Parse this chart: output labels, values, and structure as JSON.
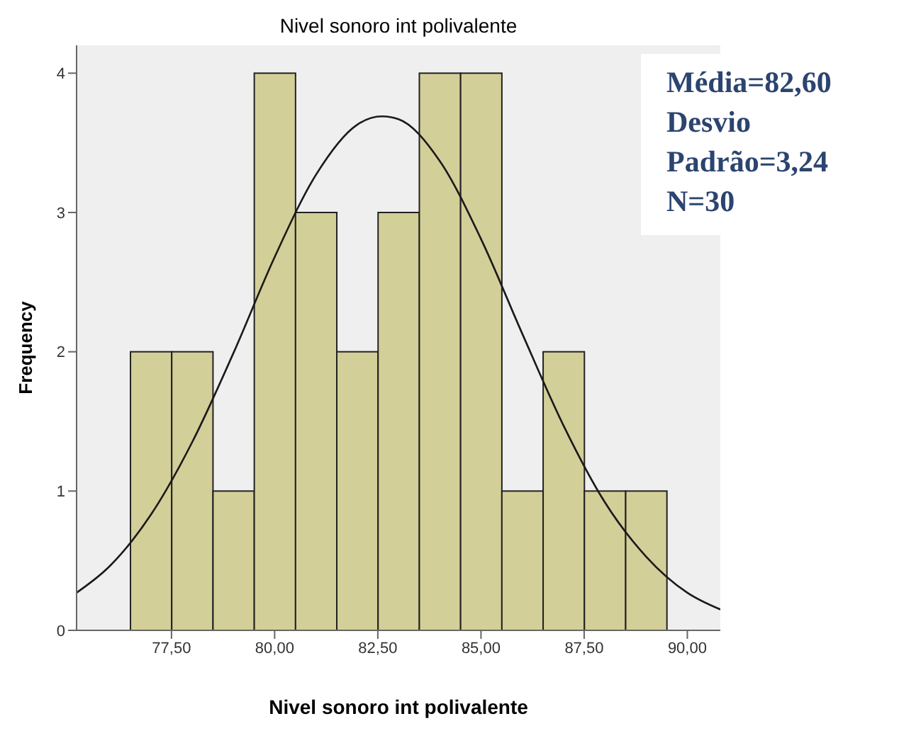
{
  "chart_data": {
    "type": "histogram",
    "title": "Nivel sonoro int polivalente",
    "xlabel": "Nivel sonoro int polivalente",
    "ylabel": "Frequency",
    "bins": [
      76.5,
      77.5,
      78.5,
      79.5,
      80.5,
      81.5,
      82.5,
      83.5,
      84.5,
      85.5,
      86.5,
      87.5,
      88.5,
      89.5
    ],
    "values": [
      2,
      2,
      1,
      4,
      3,
      2,
      3,
      4,
      4,
      1,
      2,
      1,
      1
    ],
    "color": "#d3cf98",
    "series": [
      {
        "type": "line",
        "color": "#1a1a1a",
        "x": [
          75.2,
          76,
          77,
          78,
          79,
          80,
          81,
          82,
          82.6,
          83,
          84,
          85,
          86,
          87,
          88,
          89,
          90,
          90.8
        ],
        "values": [
          0.27,
          0.46,
          0.83,
          1.35,
          1.99,
          2.68,
          3.27,
          3.63,
          3.69,
          3.67,
          3.37,
          2.81,
          2.13,
          1.47,
          0.92,
          0.53,
          0.27,
          0.15
        ]
      }
    ],
    "marker": "none",
    "xlim": [
      75.2,
      90.8
    ],
    "xticks": [
      {
        "value": 77.5,
        "label": "77,50"
      },
      {
        "value": 80,
        "label": "80,00"
      },
      {
        "value": 82.5,
        "label": "82,50"
      },
      {
        "value": 85,
        "label": "85,00"
      },
      {
        "value": 87.5,
        "label": "87,50"
      },
      {
        "value": 90,
        "label": "90,00"
      }
    ],
    "ylim": [
      0,
      4.2
    ],
    "yticks": [
      0,
      1,
      2,
      3,
      4
    ],
    "grid": false,
    "annotations": [
      "Média=82,60",
      "Desvio Padrão=3,24",
      "N=30"
    ]
  }
}
